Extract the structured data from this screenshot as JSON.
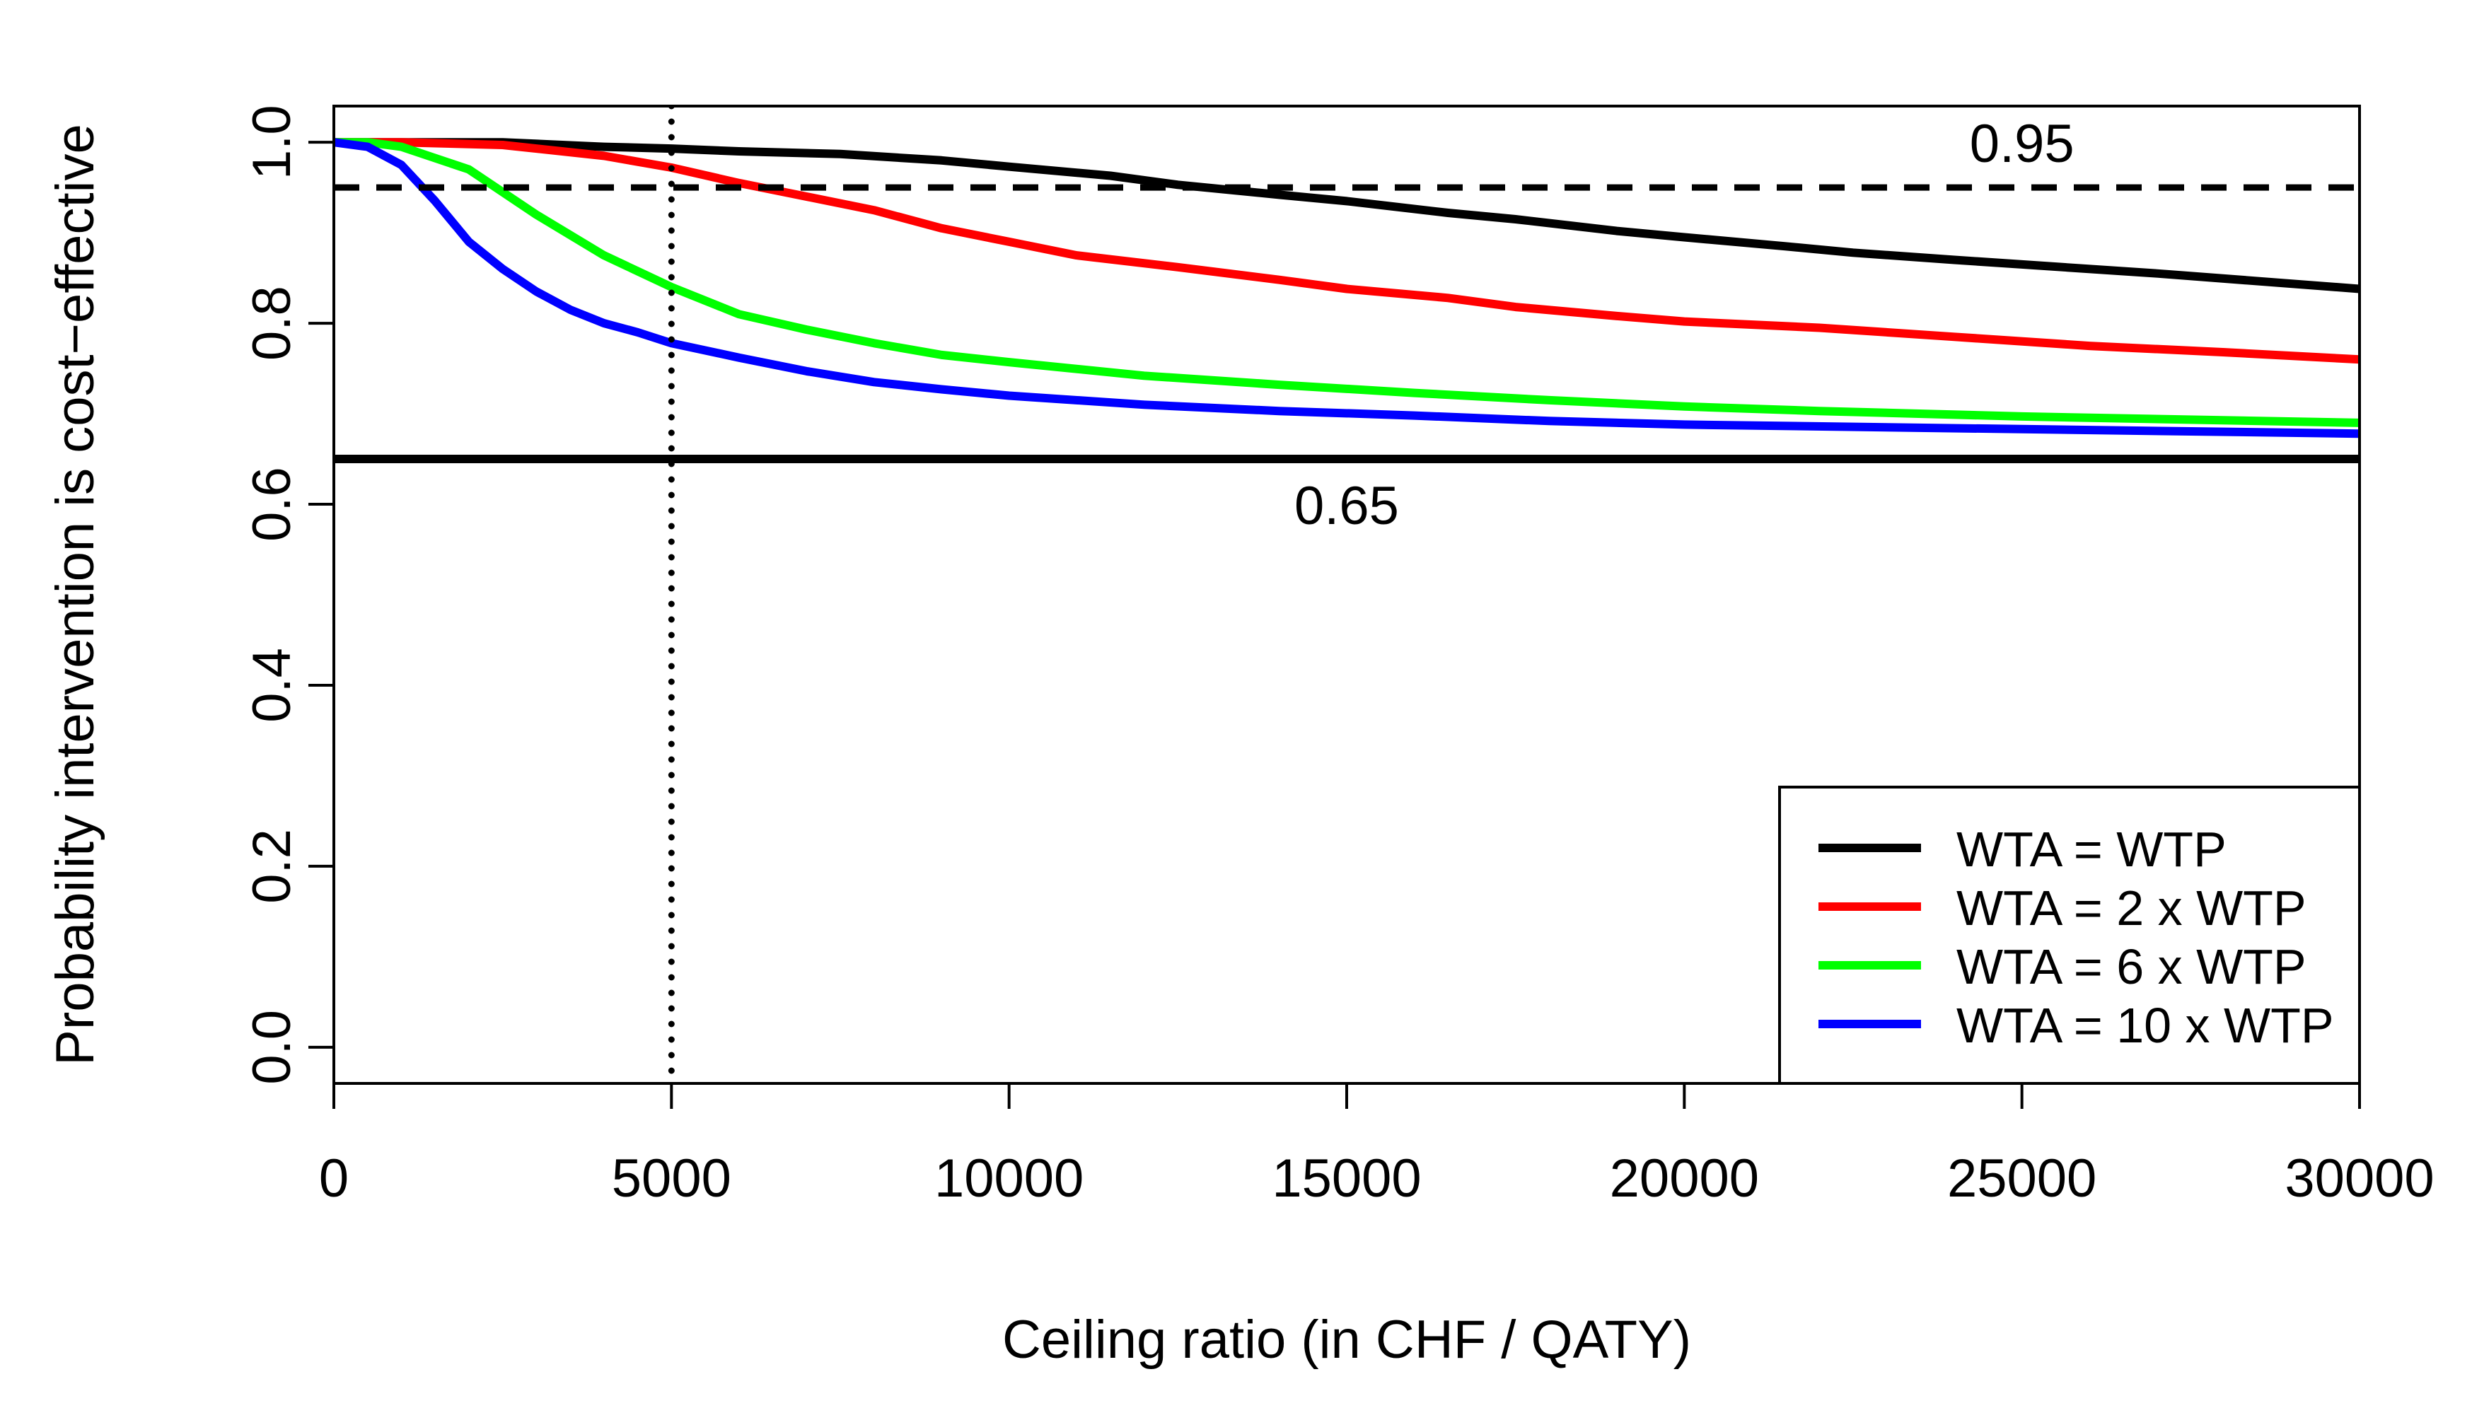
{
  "chart_data": {
    "type": "line",
    "title": "",
    "xlabel": "Ceiling ratio (in CHF / QATY)",
    "ylabel": "Probability intervention is cost−effective",
    "xlim": [
      0,
      30000
    ],
    "ylim": [
      -0.04,
      1.04
    ],
    "xticks": [
      0,
      5000,
      10000,
      15000,
      20000,
      25000,
      30000
    ],
    "xtick_labels": [
      "0",
      "5000",
      "10000",
      "15000",
      "20000",
      "25000",
      "30000"
    ],
    "yticks": [
      0.0,
      0.2,
      0.4,
      0.6,
      0.8,
      1.0
    ],
    "ytick_labels": [
      "0.0",
      "0.2",
      "0.4",
      "0.6",
      "0.8",
      "1.0"
    ],
    "reference_lines": [
      {
        "name": "upper-threshold",
        "orientation": "horizontal",
        "value": 0.95,
        "style": "dashed",
        "label": "0.95",
        "label_at_x": 25000
      },
      {
        "name": "lower-threshold",
        "orientation": "horizontal",
        "value": 0.65,
        "style": "solid",
        "label": "0.65",
        "label_at_x": 15000
      },
      {
        "name": "ceiling-5000",
        "orientation": "vertical",
        "value": 5000,
        "style": "dotted",
        "label": ""
      }
    ],
    "legend_position": "bottom-right",
    "series": [
      {
        "name": "WTA = WTP",
        "color": "#000000",
        "x": [
          0,
          1000,
          2500,
          4000,
          5000,
          6000,
          7500,
          9000,
          10000,
          11500,
          12500,
          14000,
          15000,
          16500,
          17500,
          19000,
          20000,
          21500,
          22500,
          24000,
          25000,
          27000,
          30000
        ],
        "values": [
          1.0,
          1.0,
          1.0,
          0.995,
          0.993,
          0.99,
          0.987,
          0.98,
          0.973,
          0.963,
          0.953,
          0.942,
          0.935,
          0.922,
          0.915,
          0.902,
          0.895,
          0.885,
          0.878,
          0.87,
          0.865,
          0.855,
          0.838
        ]
      },
      {
        "name": "WTA = 2 x WTP",
        "color": "#ff0000",
        "x": [
          0,
          1000,
          2500,
          4000,
          5000,
          6000,
          7000,
          8000,
          9000,
          10000,
          11000,
          12500,
          14000,
          15000,
          16500,
          17500,
          19000,
          20000,
          22000,
          24000,
          26000,
          28000,
          30000
        ],
        "values": [
          1.0,
          1.0,
          0.997,
          0.985,
          0.972,
          0.955,
          0.94,
          0.925,
          0.905,
          0.89,
          0.875,
          0.862,
          0.848,
          0.838,
          0.828,
          0.818,
          0.808,
          0.802,
          0.795,
          0.785,
          0.775,
          0.768,
          0.76
        ]
      },
      {
        "name": "WTA = 6 x WTP",
        "color": "#00ff00",
        "x": [
          0,
          500,
          1000,
          2000,
          3000,
          4000,
          5000,
          6000,
          7000,
          8000,
          9000,
          10000,
          12000,
          14000,
          16000,
          18000,
          20000,
          22000,
          25000,
          30000
        ],
        "values": [
          1.0,
          1.0,
          0.995,
          0.97,
          0.92,
          0.875,
          0.84,
          0.81,
          0.793,
          0.778,
          0.765,
          0.757,
          0.742,
          0.732,
          0.723,
          0.715,
          0.708,
          0.703,
          0.697,
          0.69
        ]
      },
      {
        "name": "WTA = 10 x WTP",
        "color": "#0000ff",
        "x": [
          0,
          500,
          1000,
          1500,
          2000,
          2500,
          3000,
          3500,
          4000,
          4500,
          5000,
          6000,
          7000,
          8000,
          9000,
          10000,
          12000,
          14000,
          16000,
          18000,
          20000,
          25000,
          30000
        ],
        "values": [
          1.0,
          0.995,
          0.975,
          0.935,
          0.89,
          0.86,
          0.835,
          0.815,
          0.8,
          0.79,
          0.778,
          0.762,
          0.747,
          0.735,
          0.727,
          0.72,
          0.71,
          0.703,
          0.698,
          0.692,
          0.688,
          0.683,
          0.678
        ]
      }
    ]
  }
}
